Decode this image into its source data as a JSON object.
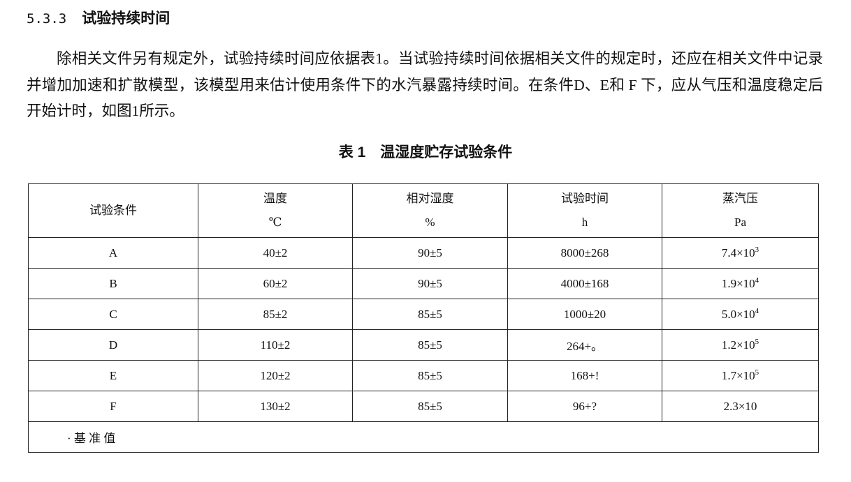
{
  "section": {
    "number": "5.3.3",
    "title": "试验持续时间"
  },
  "paragraph": "除相关文件另有规定外，试验持续时间应依据表1。当试验持续时间依据相关文件的规定时，还应在相关文件中记录并增加加速和扩散模型，该模型用来估计使用条件下的水汽暴露持续时间。在条件D、E和 F 下，应从气压和温度稳定后开始计时，如图1所示。",
  "table": {
    "title": "表 1　温湿度贮存试验条件",
    "headers": [
      {
        "label": "试验条件",
        "unit": ""
      },
      {
        "label": "温度",
        "unit": "℃"
      },
      {
        "label": "相对湿度",
        "unit": "%"
      },
      {
        "label": "试验时间",
        "unit": "h"
      },
      {
        "label": "蒸汽压",
        "unit": "Pa"
      }
    ],
    "rows": [
      {
        "cond": "A",
        "temp": "40±2",
        "rh": "90±5",
        "time": "8000±268",
        "pa": "7.4×10",
        "exp": "3"
      },
      {
        "cond": "B",
        "temp": "60±2",
        "rh": "90±5",
        "time": "4000±168",
        "pa": "1.9×10",
        "exp": "4"
      },
      {
        "cond": "C",
        "temp": "85±2",
        "rh": "85±5",
        "time": "1000±20",
        "pa": "5.0×10",
        "exp": "4"
      },
      {
        "cond": "D",
        "temp": "110±2",
        "rh": "85±5",
        "time": "264+。",
        "pa": "1.2×10",
        "exp": "5"
      },
      {
        "cond": "E",
        "temp": "120±2",
        "rh": "85±5",
        "time": "168+!",
        "pa": "1.7×10",
        "exp": "5"
      },
      {
        "cond": "F",
        "temp": "130±2",
        "rh": "85±5",
        "time": "96+?",
        "pa": "2.3×10",
        "exp": ""
      }
    ],
    "footnote": "· 基 准 值"
  }
}
